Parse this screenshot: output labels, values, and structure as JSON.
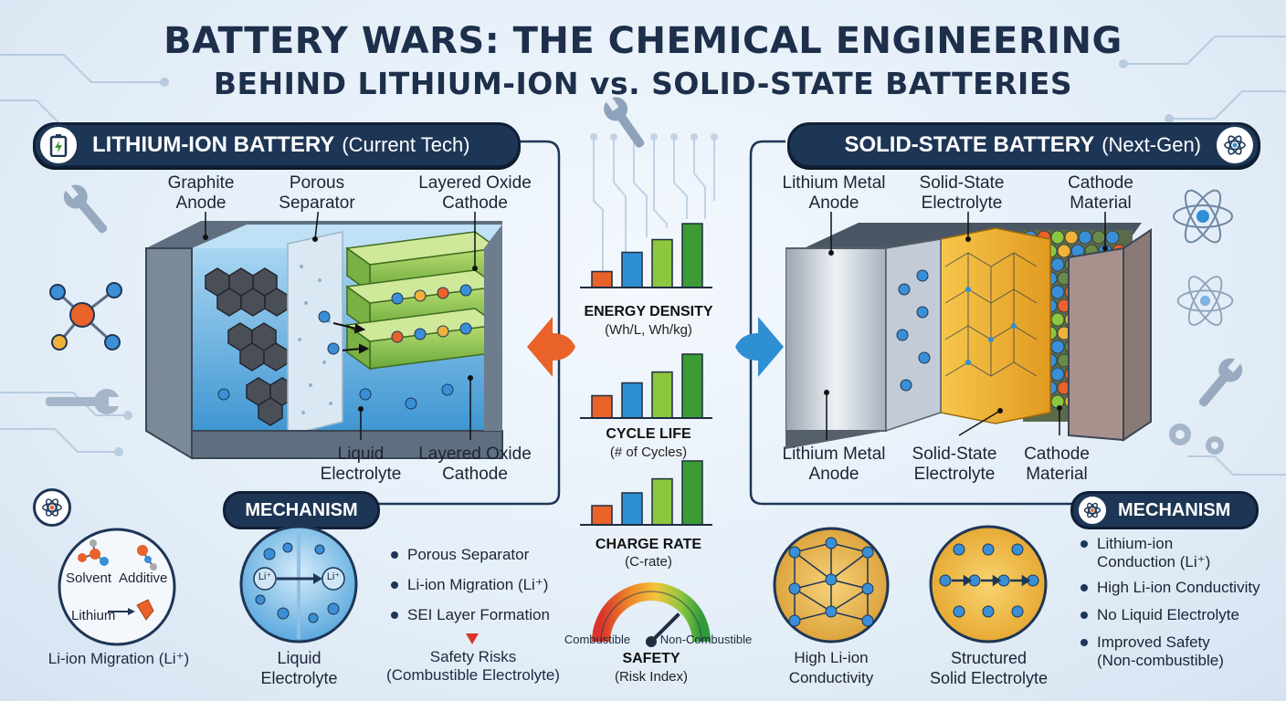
{
  "title": {
    "line1": "BATTERY WARS: THE CHEMICAL ENGINEERING",
    "line2": "BEHIND LITHIUM-ION vs. SOLID-STATE BATTERIES"
  },
  "left": {
    "header_strong": "LITHIUM-ION BATTERY",
    "header_light": "(Current Tech)",
    "top_labels": [
      {
        "l1": "Graphite",
        "l2": "Anode"
      },
      {
        "l1": "Porous",
        "l2": "Separator"
      },
      {
        "l1": "Layered Oxide",
        "l2": "Cathode"
      }
    ],
    "bottom_labels": [
      {
        "l1": "Liquid",
        "l2": "Electrolyte"
      },
      {
        "l1": "Layered Oxide",
        "l2": "Cathode"
      }
    ],
    "mechanism": {
      "label": "MECHANISM",
      "molecules": {
        "solvent": "Solvent",
        "additive": "Additive",
        "lithium": "Lithium"
      },
      "ion_label": "Li⁺",
      "caption_left": "Li-ion Migration (Li⁺)",
      "caption_mid_l1": "Liquid",
      "caption_mid_l2": "Electrolyte",
      "bullets": [
        "Porous Separator",
        "Li-ion Migration (Li⁺)",
        "SEI Layer Formation"
      ],
      "risk_l1": "Safety Risks",
      "risk_l2": "(Combustible Electrolyte)"
    }
  },
  "right": {
    "header_strong": "SOLID-STATE BATTERY",
    "header_light": "(Next-Gen)",
    "top_labels": [
      {
        "l1": "Lithium Metal",
        "l2": "Anode"
      },
      {
        "l1": "Solid-State",
        "l2": "Electrolyte"
      },
      {
        "l1": "Cathode",
        "l2": "Material"
      }
    ],
    "bottom_labels": [
      {
        "l1": "Lithium Metal",
        "l2": "Anode"
      },
      {
        "l1": "Solid-State",
        "l2": "Electrolyte"
      },
      {
        "l1": "Cathode",
        "l2": "Material"
      }
    ],
    "mechanism": {
      "label": "MECHANISM",
      "caption_left_l1": "High Li-ion",
      "caption_left_l2": "Conductivity",
      "caption_mid_l1": "Structured",
      "caption_mid_l2": "Solid Electrolyte",
      "bullets": [
        {
          "l1": "Lithium-ion",
          "l2": "Conduction (Li⁺)"
        },
        {
          "l1": "High Li-ion Conductivity",
          "l2": ""
        },
        {
          "l1": "No Liquid Electrolyte",
          "l2": ""
        },
        {
          "l1": "Improved Safety",
          "l2": "(Non-combustible)"
        }
      ]
    }
  },
  "metrics": [
    {
      "title": "ENERGY DENSITY",
      "sub": "(Wh/L, Wh/kg)",
      "levels": [
        0.25,
        0.55,
        0.75,
        1.0
      ]
    },
    {
      "title": "CYCLE LIFE",
      "sub": "(# of Cycles)",
      "levels": [
        0.35,
        0.55,
        0.72,
        1.0
      ]
    },
    {
      "title": "CHARGE RATE",
      "sub": "(C-rate)",
      "levels": [
        0.3,
        0.5,
        0.72,
        1.0
      ]
    }
  ],
  "safety": {
    "title": "SAFETY",
    "sub": "(Risk Index)",
    "left": "Combustible",
    "right": "Non-Combustible",
    "needle_level": 0.75
  },
  "colors": {
    "navy": "#1e3656",
    "orange": "#e8622a",
    "blue": "#2f8fd3",
    "lightgreen": "#8dc63f",
    "green": "#3d9b35",
    "yellow": "#f0b23a"
  }
}
